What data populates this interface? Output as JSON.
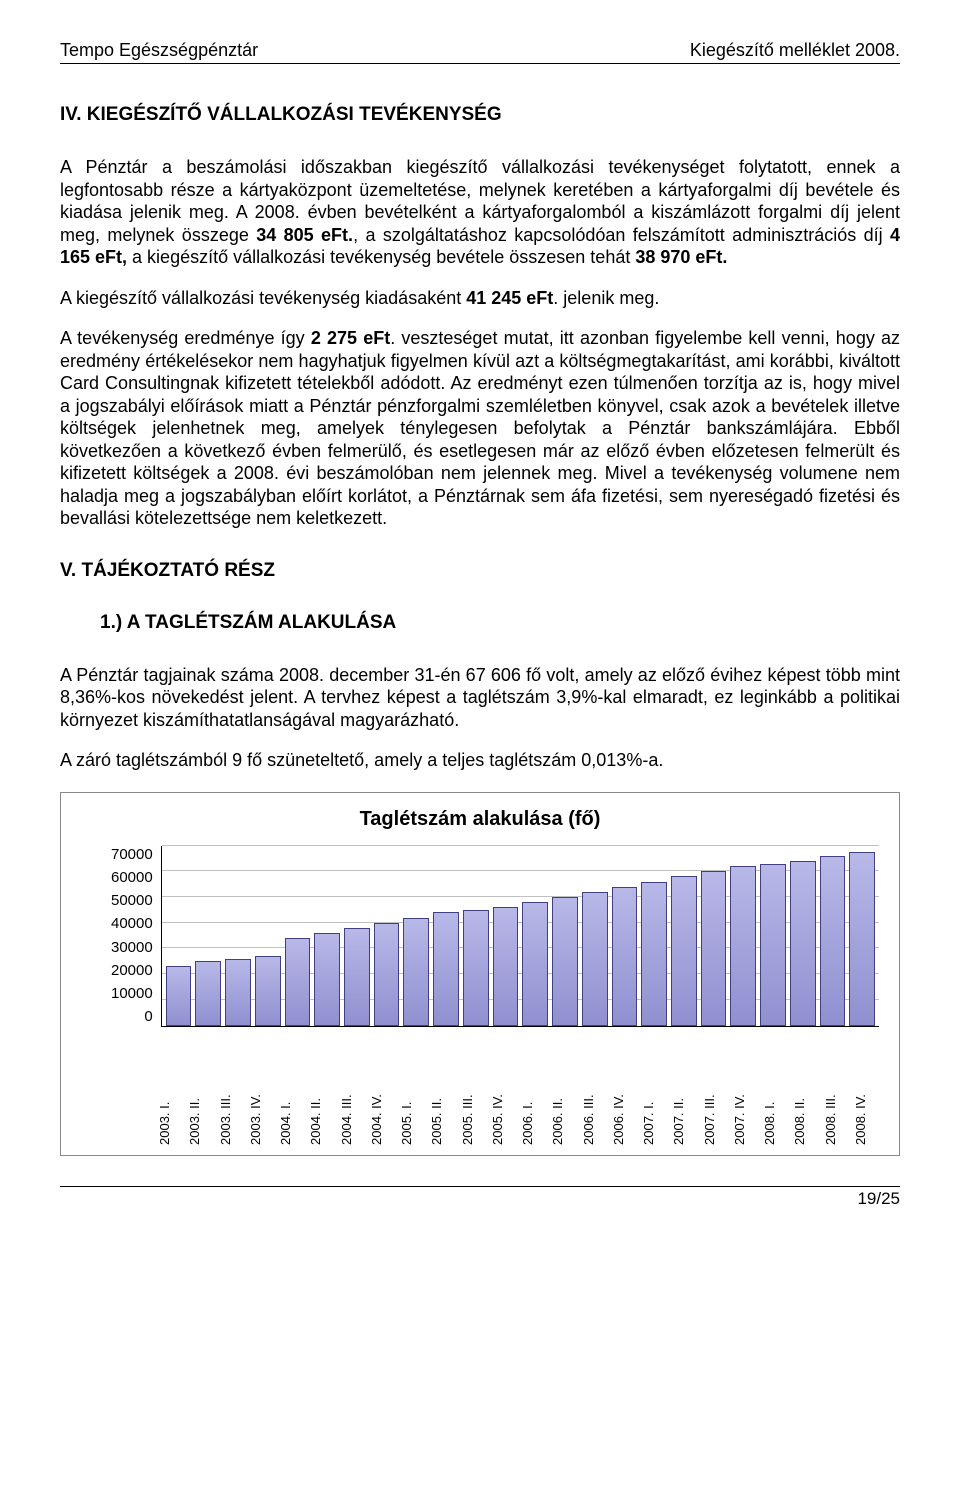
{
  "header": {
    "left": "Tempo Egészségpénztár",
    "right": "Kiegészítő melléklet 2008."
  },
  "section4": {
    "title": "IV. KIEGÉSZÍTŐ VÁLLALKOZÁSI TEVÉKENYSÉG",
    "p1a": "A Pénztár a beszámolási időszakban kiegészítő vállalkozási tevékenységet folytatott, ennek a legfontosabb része a kártyaközpont üzemeltetése, melynek keretében a kártyaforgalmi díj bevétele és kiadása jelenik meg. A 2008. évben bevételként a kártyaforgalomból a kiszámlázott forgalmi díj jelent meg, melynek összege ",
    "p1b": "34 805 eFt.",
    "p1c": ", a szolgáltatáshoz kapcsolódóan felszámított adminisztrációs díj ",
    "p1d": "4 165 eFt,",
    "p1e": " a kiegészítő vállalkozási tevékenység bevétele összesen tehát ",
    "p1f": "38 970 eFt.",
    "p2a": "A kiegészítő vállalkozási tevékenység kiadásaként ",
    "p2b": "41 245 eFt",
    "p2c": ". jelenik meg.",
    "p3a": "A tevékenység eredménye így ",
    "p3b": "2 275 eFt",
    "p3c": ". veszteséget mutat, itt azonban figyelembe kell venni, hogy az eredmény értékelésekor nem hagyhatjuk figyelmen kívül azt a költségmegtakarítást, ami korábbi, kiváltott Card Consultingnak kifizetett tételekből adódott. Az eredményt ezen túlmenően torzítja az is, hogy mivel a jogszabályi előírások miatt a Pénztár pénzforgalmi szemléletben könyvel, csak azok a bevételek illetve költségek jelenhetnek meg, amelyek ténylegesen befolytak a Pénztár bankszámlájára. Ebből következően a következő évben felmerülő, és esetlegesen már az előző évben előzetesen felmerült és kifizetett költségek a 2008. évi beszámolóban nem jelennek meg. Mivel a tevékenység volumene nem haladja meg a jogszabályban előírt korlátot, a Pénztárnak sem áfa fizetési, sem nyereségadó fizetési és bevallási kötelezettsége nem keletkezett."
  },
  "section5": {
    "title": "V. TÁJÉKOZTATÓ RÉSZ",
    "sub1": "1.) A TAGLÉTSZÁM ALAKULÁSA",
    "p1": "A Pénztár tagjainak száma 2008. december 31-én 67 606 fő volt, amely az előző évihez képest több mint 8,36%-kos növekedést jelent. A tervhez képest a taglétszám 3,9%-kal elmaradt, ez leginkább a politikai környezet kiszámíthatatlanságával magyarázható.",
    "p2": "A záró taglétszámból 9 fő szüneteltető, amely a teljes taglétszám 0,013%-a."
  },
  "chart": {
    "type": "bar",
    "title": "Taglétszám alakulása (fő)",
    "ylim": [
      0,
      70000
    ],
    "ytick_step": 10000,
    "yticks": [
      "70000",
      "60000",
      "50000",
      "40000",
      "30000",
      "20000",
      "10000",
      "0"
    ],
    "categories": [
      "2003. I.",
      "2003. II.",
      "2003. III.",
      "2003. IV.",
      "2004. I.",
      "2004. II.",
      "2004. III.",
      "2004. IV.",
      "2005. I.",
      "2005. II.",
      "2005. III.",
      "2005. IV.",
      "2006. I.",
      "2006. II.",
      "2006. III.",
      "2006. IV.",
      "2007. I.",
      "2007. II.",
      "2007. III.",
      "2007. IV.",
      "2008. I.",
      "2008. II.",
      "2008. III.",
      "2008. IV."
    ],
    "values": [
      23000,
      25000,
      26000,
      27000,
      34000,
      36000,
      38000,
      40000,
      42000,
      44000,
      45000,
      46000,
      48000,
      50000,
      52000,
      54000,
      56000,
      58000,
      60000,
      62000,
      63000,
      64000,
      66000,
      67606
    ],
    "bar_fill_top": "#b8b8e8",
    "bar_fill_bottom": "#9090d0",
    "bar_border": "#404080",
    "grid_color": "#c0c0c0",
    "background_color": "#ffffff",
    "title_fontsize": 20,
    "label_fontsize": 15,
    "xlabel_fontsize": 13
  },
  "footer": {
    "page": "19/25"
  }
}
